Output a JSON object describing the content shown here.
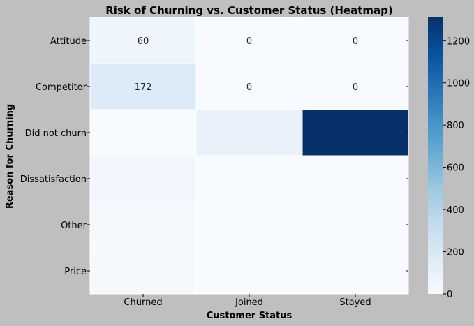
{
  "chart_data": {
    "type": "heatmap",
    "title": "Risk of Churning vs. Customer Status (Heatmap)",
    "xlabel": "Customer Status",
    "ylabel": "Reason for Churning",
    "x_categories": [
      "Churned",
      "Joined",
      "Stayed"
    ],
    "y_categories": [
      "Attitude",
      "Competitor",
      "Did not churn",
      "Dissatisfaction",
      "Other",
      "Price"
    ],
    "values": [
      [
        60,
        0,
        0
      ],
      [
        172,
        0,
        0
      ],
      [
        0,
        90,
        1310
      ],
      [
        40,
        0,
        0
      ],
      [
        20,
        0,
        0
      ],
      [
        20,
        0,
        0
      ]
    ],
    "annotations": [
      [
        "60",
        "0",
        "0"
      ],
      [
        "172",
        "0",
        "0"
      ],
      [
        "",
        "",
        ""
      ],
      [
        "",
        "",
        ""
      ],
      [
        "",
        "",
        ""
      ],
      [
        "",
        "",
        ""
      ]
    ],
    "colormap": "Blues",
    "vmin": 0,
    "vmax": 1310,
    "colorbar_ticks": [
      0,
      200,
      400,
      600,
      800,
      1000,
      1200
    ],
    "colorbar_tick_labels": [
      "0",
      "200",
      "400",
      "600",
      "800",
      "1000",
      "1200"
    ],
    "grid": false
  }
}
